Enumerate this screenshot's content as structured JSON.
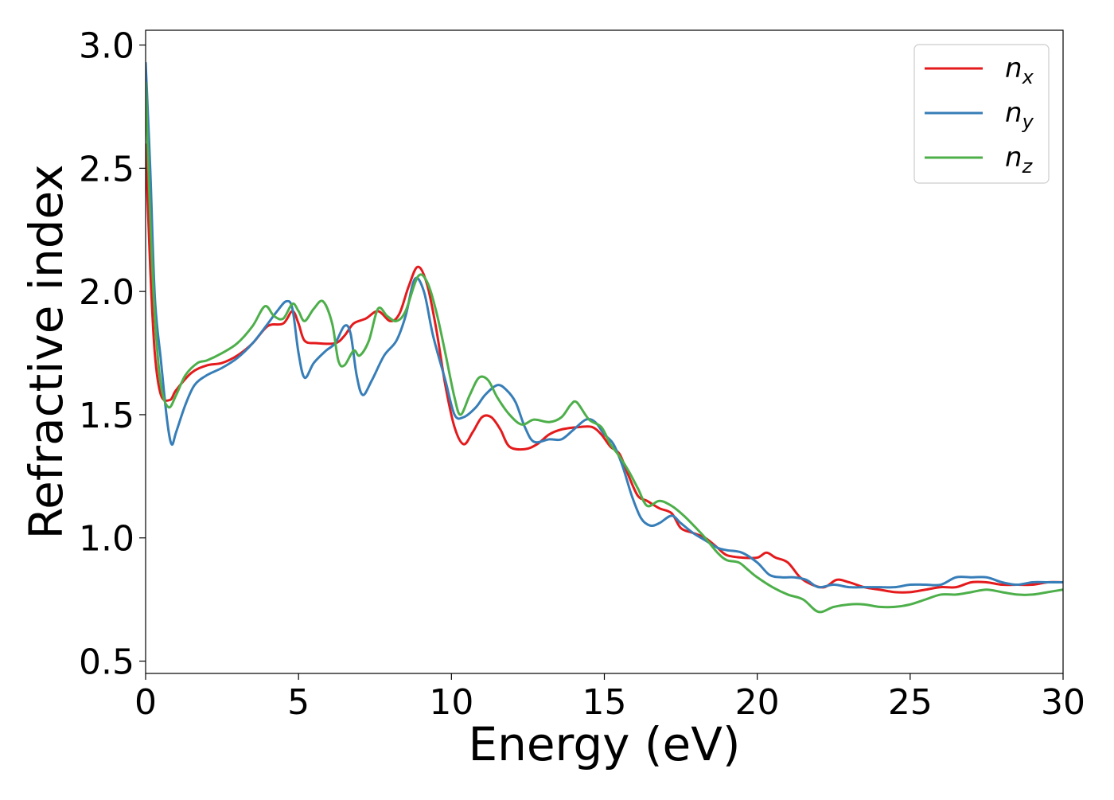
{
  "chart_data": {
    "type": "line",
    "xlabel": "Energy (eV)",
    "ylabel": "Refractive index",
    "xlim": [
      0,
      30
    ],
    "ylim": [
      0.45,
      3.06
    ],
    "xticks": [
      "0",
      "5",
      "10",
      "15",
      "20",
      "25",
      "30"
    ],
    "yticks": [
      "0.5",
      "1.0",
      "1.5",
      "2.0",
      "2.5",
      "3.0"
    ],
    "grid": false,
    "legend_position": "top-right",
    "series": [
      {
        "name": "n_x",
        "label_base": "n",
        "label_sub": "x",
        "color": "#e41a1c",
        "points": [
          [
            0,
            2.6
          ],
          [
            0.15,
            2.1
          ],
          [
            0.3,
            1.75
          ],
          [
            0.5,
            1.58
          ],
          [
            0.8,
            1.56
          ],
          [
            1.0,
            1.6
          ],
          [
            1.5,
            1.67
          ],
          [
            2.0,
            1.7
          ],
          [
            2.5,
            1.71
          ],
          [
            3.0,
            1.74
          ],
          [
            3.5,
            1.79
          ],
          [
            4.0,
            1.86
          ],
          [
            4.5,
            1.87
          ],
          [
            4.8,
            1.92
          ],
          [
            5.0,
            1.87
          ],
          [
            5.2,
            1.8
          ],
          [
            5.6,
            1.79
          ],
          [
            6.2,
            1.79
          ],
          [
            6.5,
            1.82
          ],
          [
            6.8,
            1.87
          ],
          [
            7.2,
            1.89
          ],
          [
            7.6,
            1.92
          ],
          [
            8.0,
            1.88
          ],
          [
            8.3,
            1.91
          ],
          [
            8.6,
            2.02
          ],
          [
            8.9,
            2.1
          ],
          [
            9.2,
            2.03
          ],
          [
            9.5,
            1.85
          ],
          [
            9.8,
            1.62
          ],
          [
            10.1,
            1.45
          ],
          [
            10.4,
            1.38
          ],
          [
            10.7,
            1.43
          ],
          [
            11.0,
            1.49
          ],
          [
            11.3,
            1.49
          ],
          [
            11.6,
            1.44
          ],
          [
            11.9,
            1.37
          ],
          [
            12.4,
            1.36
          ],
          [
            12.8,
            1.38
          ],
          [
            13.2,
            1.42
          ],
          [
            13.6,
            1.44
          ],
          [
            14.2,
            1.45
          ],
          [
            14.6,
            1.45
          ],
          [
            14.9,
            1.42
          ],
          [
            15.2,
            1.37
          ],
          [
            15.5,
            1.34
          ],
          [
            15.8,
            1.25
          ],
          [
            16.1,
            1.17
          ],
          [
            16.4,
            1.15
          ],
          [
            16.8,
            1.12
          ],
          [
            17.2,
            1.1
          ],
          [
            17.5,
            1.04
          ],
          [
            17.9,
            1.02
          ],
          [
            18.3,
            1.0
          ],
          [
            18.7,
            0.96
          ],
          [
            19.0,
            0.93
          ],
          [
            19.5,
            0.92
          ],
          [
            20.0,
            0.92
          ],
          [
            20.3,
            0.94
          ],
          [
            20.6,
            0.92
          ],
          [
            21.0,
            0.9
          ],
          [
            21.4,
            0.84
          ],
          [
            21.8,
            0.81
          ],
          [
            22.2,
            0.8
          ],
          [
            22.6,
            0.83
          ],
          [
            23.0,
            0.82
          ],
          [
            23.5,
            0.8
          ],
          [
            24.0,
            0.79
          ],
          [
            24.5,
            0.78
          ],
          [
            25.0,
            0.78
          ],
          [
            25.5,
            0.79
          ],
          [
            26.0,
            0.8
          ],
          [
            26.5,
            0.8
          ],
          [
            27.0,
            0.82
          ],
          [
            27.5,
            0.82
          ],
          [
            28.0,
            0.81
          ],
          [
            28.5,
            0.81
          ],
          [
            29.0,
            0.81
          ],
          [
            29.5,
            0.82
          ],
          [
            30.0,
            0.82
          ]
        ]
      },
      {
        "name": "n_y",
        "label_base": "n",
        "label_sub": "y",
        "color": "#377eb8",
        "points": [
          [
            0,
            2.93
          ],
          [
            0.15,
            2.5
          ],
          [
            0.3,
            1.98
          ],
          [
            0.5,
            1.72
          ],
          [
            0.7,
            1.48
          ],
          [
            0.85,
            1.38
          ],
          [
            1.0,
            1.43
          ],
          [
            1.3,
            1.54
          ],
          [
            1.6,
            1.62
          ],
          [
            2.0,
            1.66
          ],
          [
            2.5,
            1.69
          ],
          [
            3.0,
            1.73
          ],
          [
            3.5,
            1.79
          ],
          [
            4.0,
            1.87
          ],
          [
            4.3,
            1.92
          ],
          [
            4.6,
            1.96
          ],
          [
            4.8,
            1.93
          ],
          [
            5.0,
            1.75
          ],
          [
            5.2,
            1.65
          ],
          [
            5.5,
            1.71
          ],
          [
            5.9,
            1.76
          ],
          [
            6.2,
            1.79
          ],
          [
            6.5,
            1.86
          ],
          [
            6.7,
            1.83
          ],
          [
            6.9,
            1.66
          ],
          [
            7.1,
            1.58
          ],
          [
            7.4,
            1.64
          ],
          [
            7.8,
            1.74
          ],
          [
            8.2,
            1.8
          ],
          [
            8.5,
            1.9
          ],
          [
            8.8,
            2.05
          ],
          [
            9.1,
            2.0
          ],
          [
            9.4,
            1.82
          ],
          [
            9.8,
            1.64
          ],
          [
            10.1,
            1.5
          ],
          [
            10.4,
            1.49
          ],
          [
            10.8,
            1.53
          ],
          [
            11.1,
            1.58
          ],
          [
            11.5,
            1.62
          ],
          [
            11.8,
            1.6
          ],
          [
            12.1,
            1.55
          ],
          [
            12.4,
            1.45
          ],
          [
            12.7,
            1.39
          ],
          [
            13.2,
            1.4
          ],
          [
            13.6,
            1.4
          ],
          [
            14.0,
            1.44
          ],
          [
            14.4,
            1.48
          ],
          [
            14.7,
            1.47
          ],
          [
            15.0,
            1.42
          ],
          [
            15.3,
            1.38
          ],
          [
            15.6,
            1.29
          ],
          [
            15.9,
            1.17
          ],
          [
            16.2,
            1.08
          ],
          [
            16.5,
            1.05
          ],
          [
            16.8,
            1.06
          ],
          [
            17.2,
            1.09
          ],
          [
            17.5,
            1.06
          ],
          [
            17.9,
            1.02
          ],
          [
            18.3,
            0.99
          ],
          [
            18.7,
            0.96
          ],
          [
            19.0,
            0.95
          ],
          [
            19.5,
            0.94
          ],
          [
            20.0,
            0.9
          ],
          [
            20.4,
            0.85
          ],
          [
            20.8,
            0.84
          ],
          [
            21.2,
            0.84
          ],
          [
            21.6,
            0.83
          ],
          [
            22.0,
            0.8
          ],
          [
            22.5,
            0.81
          ],
          [
            23.0,
            0.8
          ],
          [
            23.5,
            0.8
          ],
          [
            24.0,
            0.8
          ],
          [
            24.5,
            0.8
          ],
          [
            25.0,
            0.81
          ],
          [
            25.5,
            0.81
          ],
          [
            26.0,
            0.81
          ],
          [
            26.5,
            0.84
          ],
          [
            27.0,
            0.84
          ],
          [
            27.5,
            0.84
          ],
          [
            28.0,
            0.82
          ],
          [
            28.5,
            0.81
          ],
          [
            29.0,
            0.82
          ],
          [
            29.5,
            0.82
          ],
          [
            30.0,
            0.82
          ]
        ]
      },
      {
        "name": "n_z",
        "label_base": "n",
        "label_sub": "z",
        "color": "#4daf4a",
        "points": [
          [
            0,
            2.85
          ],
          [
            0.15,
            2.3
          ],
          [
            0.3,
            1.9
          ],
          [
            0.5,
            1.62
          ],
          [
            0.75,
            1.53
          ],
          [
            1.0,
            1.58
          ],
          [
            1.3,
            1.66
          ],
          [
            1.7,
            1.71
          ],
          [
            2.0,
            1.72
          ],
          [
            2.5,
            1.75
          ],
          [
            3.0,
            1.79
          ],
          [
            3.5,
            1.86
          ],
          [
            3.9,
            1.94
          ],
          [
            4.2,
            1.9
          ],
          [
            4.5,
            1.89
          ],
          [
            4.8,
            1.95
          ],
          [
            5.0,
            1.92
          ],
          [
            5.2,
            1.88
          ],
          [
            5.5,
            1.93
          ],
          [
            5.8,
            1.96
          ],
          [
            6.1,
            1.87
          ],
          [
            6.3,
            1.72
          ],
          [
            6.5,
            1.7
          ],
          [
            6.8,
            1.76
          ],
          [
            7.0,
            1.74
          ],
          [
            7.3,
            1.8
          ],
          [
            7.6,
            1.93
          ],
          [
            7.9,
            1.9
          ],
          [
            8.2,
            1.88
          ],
          [
            8.5,
            1.92
          ],
          [
            8.9,
            2.06
          ],
          [
            9.2,
            2.04
          ],
          [
            9.5,
            1.92
          ],
          [
            9.8,
            1.75
          ],
          [
            10.1,
            1.57
          ],
          [
            10.3,
            1.5
          ],
          [
            10.6,
            1.58
          ],
          [
            10.9,
            1.65
          ],
          [
            11.2,
            1.64
          ],
          [
            11.5,
            1.57
          ],
          [
            11.9,
            1.5
          ],
          [
            12.3,
            1.46
          ],
          [
            12.7,
            1.48
          ],
          [
            13.2,
            1.47
          ],
          [
            13.6,
            1.49
          ],
          [
            13.9,
            1.54
          ],
          [
            14.1,
            1.55
          ],
          [
            14.5,
            1.48
          ],
          [
            14.9,
            1.45
          ],
          [
            15.2,
            1.38
          ],
          [
            15.5,
            1.33
          ],
          [
            15.8,
            1.27
          ],
          [
            16.1,
            1.2
          ],
          [
            16.4,
            1.13
          ],
          [
            16.8,
            1.15
          ],
          [
            17.2,
            1.13
          ],
          [
            17.6,
            1.09
          ],
          [
            18.0,
            1.04
          ],
          [
            18.3,
            1.0
          ],
          [
            18.7,
            0.94
          ],
          [
            19.0,
            0.91
          ],
          [
            19.4,
            0.9
          ],
          [
            19.7,
            0.87
          ],
          [
            20.0,
            0.84
          ],
          [
            20.5,
            0.8
          ],
          [
            21.0,
            0.77
          ],
          [
            21.5,
            0.75
          ],
          [
            22.0,
            0.7
          ],
          [
            22.5,
            0.72
          ],
          [
            23.0,
            0.73
          ],
          [
            23.5,
            0.73
          ],
          [
            24.0,
            0.72
          ],
          [
            24.5,
            0.72
          ],
          [
            25.0,
            0.73
          ],
          [
            25.5,
            0.75
          ],
          [
            26.0,
            0.77
          ],
          [
            26.5,
            0.77
          ],
          [
            27.0,
            0.78
          ],
          [
            27.5,
            0.79
          ],
          [
            28.0,
            0.78
          ],
          [
            28.5,
            0.77
          ],
          [
            29.0,
            0.77
          ],
          [
            29.5,
            0.78
          ],
          [
            30.0,
            0.79
          ]
        ]
      }
    ]
  }
}
